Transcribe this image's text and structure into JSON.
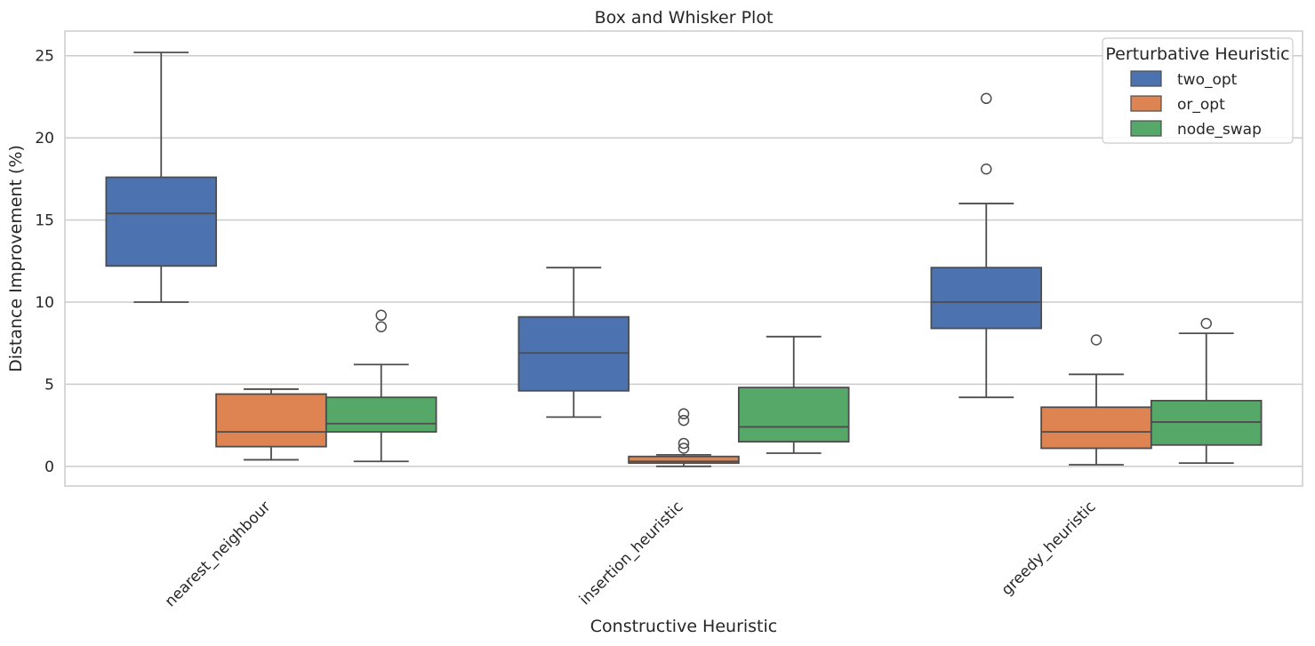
{
  "chart_data": {
    "type": "box",
    "title": "Box and Whisker Plot",
    "xlabel": "Constructive Heuristic",
    "ylabel": "Distance Improvement (%)",
    "ylim": [
      -1.2,
      26.5
    ],
    "yticks": [
      0,
      5,
      10,
      15,
      20,
      25
    ],
    "grid": "horizontal",
    "categories": [
      "nearest_neighbour",
      "insertion_heuristic",
      "greedy_heuristic"
    ],
    "legend": {
      "title": "Perturbative Heuristic",
      "placement": "top-right"
    },
    "series": [
      {
        "name": "two_opt",
        "color": "#4c72b0",
        "boxes": [
          {
            "whisker_low": 10.0,
            "q1": 12.2,
            "median": 15.4,
            "q3": 17.6,
            "whisker_high": 25.2,
            "outliers": []
          },
          {
            "whisker_low": 3.0,
            "q1": 4.6,
            "median": 6.9,
            "q3": 9.1,
            "whisker_high": 12.1,
            "outliers": []
          },
          {
            "whisker_low": 4.2,
            "q1": 8.4,
            "median": 10.0,
            "q3": 12.1,
            "whisker_high": 16.0,
            "outliers": [
              18.1,
              22.4
            ]
          }
        ]
      },
      {
        "name": "or_opt",
        "color": "#dd8452",
        "boxes": [
          {
            "whisker_low": 0.4,
            "q1": 1.2,
            "median": 2.1,
            "q3": 4.4,
            "whisker_high": 4.7,
            "outliers": []
          },
          {
            "whisker_low": 0.0,
            "q1": 0.2,
            "median": 0.3,
            "q3": 0.6,
            "whisker_high": 0.7,
            "outliers": [
              1.1,
              1.4,
              2.8,
              3.2
            ]
          },
          {
            "whisker_low": 0.1,
            "q1": 1.1,
            "median": 2.1,
            "q3": 3.6,
            "whisker_high": 5.6,
            "outliers": [
              7.7
            ]
          }
        ]
      },
      {
        "name": "node_swap",
        "color": "#55a868",
        "boxes": [
          {
            "whisker_low": 0.3,
            "q1": 2.1,
            "median": 2.6,
            "q3": 4.2,
            "whisker_high": 6.2,
            "outliers": [
              8.5,
              9.2
            ]
          },
          {
            "whisker_low": 0.8,
            "q1": 1.5,
            "median": 2.4,
            "q3": 4.8,
            "whisker_high": 7.9,
            "outliers": []
          },
          {
            "whisker_low": 0.2,
            "q1": 1.3,
            "median": 2.7,
            "q3": 4.0,
            "whisker_high": 8.1,
            "outliers": [
              8.7
            ]
          }
        ]
      }
    ]
  }
}
